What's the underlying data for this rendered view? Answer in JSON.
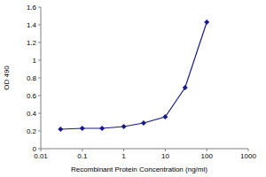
{
  "chart_data": {
    "type": "line",
    "x_label": "Recombinant Protein Concentration (ng/ml)",
    "y_label": "OD 490",
    "x": [
      0.03,
      0.1,
      0.3,
      1,
      3,
      10,
      30,
      100
    ],
    "values": [
      0.22,
      0.23,
      0.23,
      0.25,
      0.29,
      0.36,
      0.69,
      1.43
    ],
    "color": "#1a1a8c",
    "marker": "diamond",
    "line_style": "solid",
    "log": "x",
    "grid": false,
    "xlim": [
      0.01,
      1000
    ],
    "xticks": [
      0.01,
      0.1,
      1,
      10,
      100,
      1000
    ],
    "ylim": [
      0,
      1.6
    ],
    "yticks": [
      0,
      0.2,
      0.4,
      0.6,
      0.8,
      1,
      1.2,
      1.4,
      1.6
    ]
  }
}
